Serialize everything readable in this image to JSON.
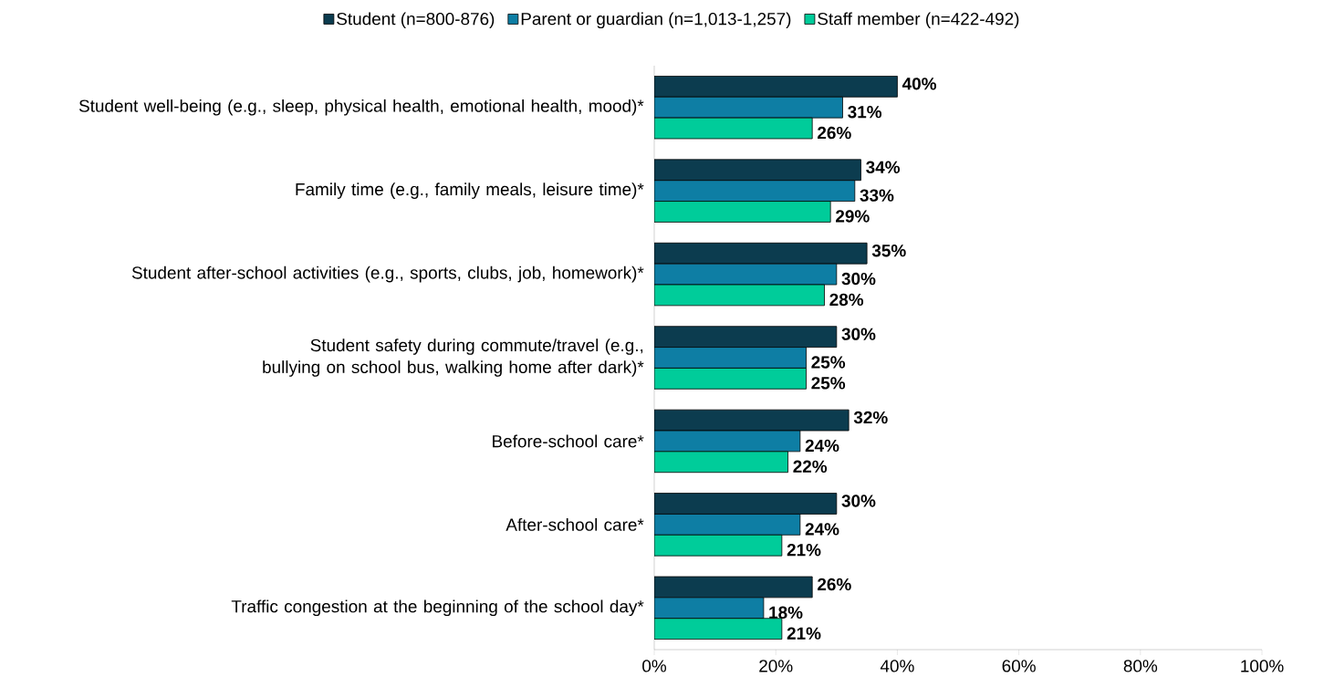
{
  "chart_data": {
    "type": "bar",
    "orientation": "horizontal",
    "legend": "top",
    "grid": false,
    "categories": [
      "Student well-being (e.g., sleep, physical health, emotional health, mood)*",
      "Family time (e.g., family meals, leisure time)*",
      "Student after-school activities (e.g., sports, clubs, job, homework)*",
      "Student safety during commute/travel (e.g., bullying on school bus, walking home after dark)*",
      "Before-school care*",
      "After-school care*",
      "Traffic congestion at the beginning of the school day*"
    ],
    "series": [
      {
        "name": "Student (n=800-876)",
        "color": "#0c3c4f",
        "values": [
          40,
          34,
          35,
          30,
          32,
          30,
          26
        ],
        "value_labels": [
          "40%",
          "34%",
          "35%",
          "30%",
          "32%",
          "30%",
          "26%"
        ]
      },
      {
        "name": "Parent or guardian (n=1,013-1,257)",
        "color": "#0e7ea4",
        "values": [
          31,
          33,
          30,
          25,
          24,
          24,
          18
        ],
        "value_labels": [
          "31%",
          "33%",
          "30%",
          "25%",
          "24%",
          "24%",
          "18%"
        ]
      },
      {
        "name": "Staff member (n=422-492)",
        "color": "#00cc9a",
        "values": [
          26,
          29,
          28,
          25,
          22,
          21,
          21
        ],
        "value_labels": [
          "26%",
          "29%",
          "28%",
          "25%",
          "22%",
          "21%",
          "21%"
        ]
      }
    ],
    "xlim": [
      0,
      100
    ],
    "xticks": [
      {
        "value": 0,
        "label": "0%"
      },
      {
        "value": 20,
        "label": "20%"
      },
      {
        "value": 40,
        "label": "40%"
      },
      {
        "value": 60,
        "label": "60%"
      },
      {
        "value": 80,
        "label": "80%"
      },
      {
        "value": 100,
        "label": "100%"
      }
    ]
  }
}
